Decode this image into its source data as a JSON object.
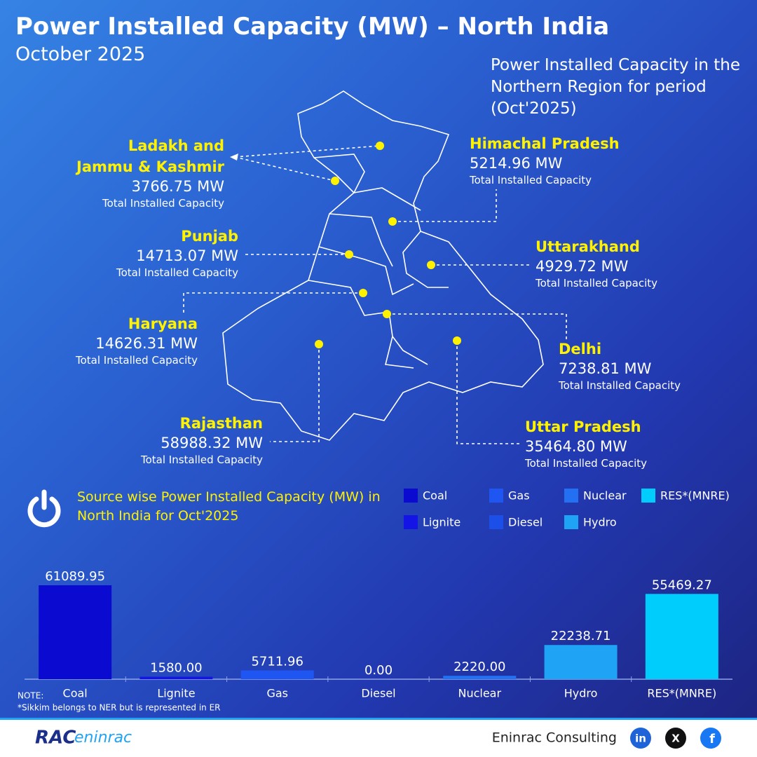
{
  "header": {
    "title": "Power Installed Capacity (MW) – North India",
    "subtitle": "October 2025"
  },
  "map": {
    "description": "Power Installed Capacity in the Northern Region for period (Oct'2025)",
    "states": [
      {
        "name": "Ladakh and Jammu & Kashmir",
        "capacity": "3766.75 MW",
        "caption": "Total Installed Capacity"
      },
      {
        "name": "Himachal Pradesh",
        "capacity": "5214.96 MW",
        "caption": "Total Installed Capacity"
      },
      {
        "name": "Punjab",
        "capacity": "14713.07 MW",
        "caption": "Total Installed Capacity"
      },
      {
        "name": "Uttarakhand",
        "capacity": "4929.72 MW",
        "caption": "Total Installed Capacity"
      },
      {
        "name": "Haryana",
        "capacity": "14626.31 MW",
        "caption": "Total Installed Capacity"
      },
      {
        "name": "Delhi",
        "capacity": "7238.81 MW",
        "caption": "Total Installed Capacity"
      },
      {
        "name": "Rajasthan",
        "capacity": "58988.32 MW",
        "caption": "Total Installed Capacity"
      },
      {
        "name": "Uttar Pradesh",
        "capacity": "35464.80 MW",
        "caption": "Total Installed Capacity"
      }
    ]
  },
  "chart_data": {
    "type": "bar",
    "title": "Source wise Power Installed Capacity (MW) in North India for Oct'2025",
    "categories": [
      "Coal",
      "Lignite",
      "Gas",
      "Diesel",
      "Nuclear",
      "Hydro",
      "RES*(MNRE)"
    ],
    "values": [
      61089.95,
      1580,
      5711.96,
      0,
      2220,
      22238.71,
      55469.27
    ],
    "value_labels": [
      "61089.95",
      "1580.00",
      "5711.96",
      "0.00",
      "2220.00",
      "22238.71",
      "55469.27"
    ],
    "colors": [
      "#0a0ad0",
      "#1414e6",
      "#1f55f0",
      "#1c4fe8",
      "#2370f2",
      "#1fa3f5",
      "#00cdfb"
    ],
    "legend": true
  },
  "footer": {
    "note_label": "NOTE:",
    "note": "*Sikkim belongs to NER but is represented in ER",
    "logo_mark": "RAC",
    "logo_text": "eninrac",
    "company": "Eninrac Consulting",
    "social": [
      "in",
      "X",
      "f"
    ]
  }
}
